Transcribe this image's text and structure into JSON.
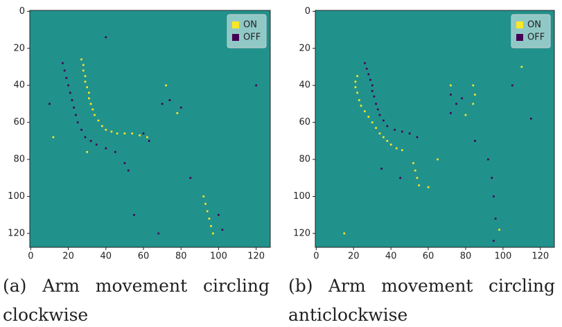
{
  "chart_data": [
    {
      "type": "scatter",
      "caption": "(a) Arm movement circling clockwise",
      "xlim": [
        -0.5,
        127.5
      ],
      "ylim": [
        127.5,
        -0.5
      ],
      "xticks": [
        0,
        20,
        40,
        60,
        80,
        100,
        120
      ],
      "yticks": [
        0,
        20,
        40,
        60,
        80,
        100,
        120
      ],
      "background": "#21918c",
      "legend": "upper right",
      "series": [
        {
          "name": "ON",
          "color": "#fde725",
          "x": [
            27,
            28,
            28,
            29,
            29,
            30,
            31,
            31,
            32,
            33,
            34,
            36,
            38,
            40,
            43,
            46,
            50,
            54,
            58,
            62,
            92,
            93,
            94,
            95,
            96,
            97,
            30,
            12,
            72,
            78
          ],
          "values": [
            26,
            29,
            32,
            35,
            38,
            41,
            44,
            47,
            50,
            53,
            56,
            59,
            62,
            64,
            65,
            66,
            66,
            66,
            67,
            68,
            100,
            104,
            108,
            112,
            116,
            120,
            76,
            68,
            40,
            55
          ]
        },
        {
          "name": "OFF",
          "color": "#440154",
          "x": [
            17,
            18,
            19,
            20,
            21,
            22,
            23,
            24,
            25,
            27,
            29,
            32,
            35,
            40,
            45,
            50,
            52,
            60,
            63,
            70,
            74,
            80,
            100,
            102,
            55,
            68,
            10,
            40,
            85,
            120
          ],
          "values": [
            28,
            32,
            36,
            40,
            44,
            48,
            52,
            56,
            60,
            64,
            68,
            70,
            72,
            74,
            76,
            82,
            86,
            66,
            70,
            50,
            48,
            52,
            110,
            118,
            110,
            120,
            50,
            14,
            90,
            40
          ]
        }
      ]
    },
    {
      "type": "scatter",
      "caption": "(b) Arm movement circling anticlockwise",
      "xlim": [
        -0.5,
        127.5
      ],
      "ylim": [
        127.5,
        -0.5
      ],
      "xticks": [
        0,
        20,
        40,
        60,
        80,
        100,
        120
      ],
      "yticks": [
        0,
        20,
        40,
        60,
        80,
        100,
        120
      ],
      "background": "#21918c",
      "legend": "upper right",
      "series": [
        {
          "name": "ON",
          "color": "#fde725",
          "x": [
            22,
            21,
            21,
            22,
            23,
            24,
            26,
            28,
            30,
            32,
            34,
            36,
            38,
            40,
            43,
            46,
            52,
            53,
            54,
            55,
            84,
            85,
            84,
            80,
            65,
            60,
            98,
            72,
            110,
            15
          ],
          "values": [
            35,
            38,
            41,
            44,
            48,
            51,
            54,
            57,
            60,
            63,
            66,
            68,
            70,
            72,
            74,
            75,
            82,
            86,
            90,
            94,
            40,
            45,
            50,
            56,
            80,
            95,
            118,
            40,
            30,
            120
          ]
        },
        {
          "name": "OFF",
          "color": "#440154",
          "x": [
            26,
            27,
            28,
            29,
            30,
            30,
            31,
            32,
            33,
            34,
            36,
            38,
            42,
            46,
            50,
            54,
            72,
            75,
            78,
            72,
            85,
            92,
            94,
            95,
            96,
            95,
            45,
            35,
            105,
            115
          ],
          "values": [
            28,
            31,
            34,
            37,
            40,
            43,
            46,
            50,
            53,
            56,
            59,
            62,
            64,
            65,
            66,
            68,
            45,
            50,
            47,
            55,
            70,
            80,
            90,
            100,
            112,
            124,
            90,
            85,
            40,
            58
          ]
        }
      ]
    }
  ]
}
